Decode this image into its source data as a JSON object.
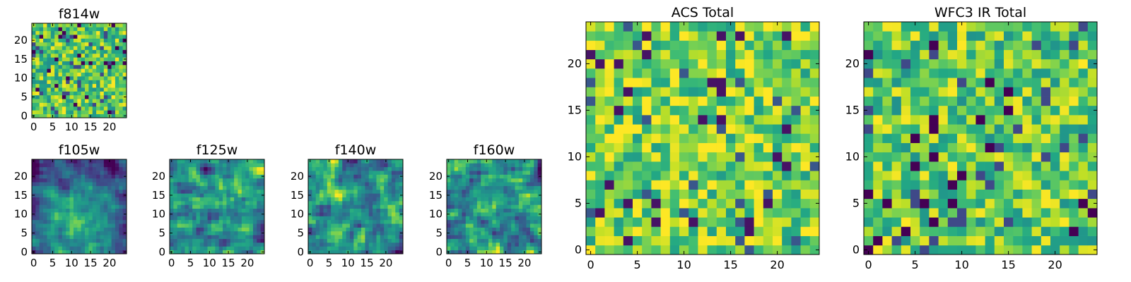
{
  "figure": {
    "colormap": "viridis",
    "colors": [
      "#440154",
      "#3b528b",
      "#21918c",
      "#5ec962",
      "#fde725"
    ],
    "seed_note": "pixel values are noise; the page renders a deterministic 25x25 field per panel"
  },
  "chart_data": [
    {
      "type": "heatmap",
      "title": "f814w",
      "grid_size": [
        25,
        25
      ],
      "xticks": [
        0,
        5,
        10,
        15,
        20
      ],
      "yticks": [
        0,
        5,
        10,
        15,
        20
      ],
      "xlim": [
        -0.5,
        24.5
      ],
      "ylim": [
        -0.5,
        24.5
      ],
      "seed": 11,
      "profile": "noisy"
    },
    {
      "type": "heatmap",
      "title": "f105w",
      "grid_size": [
        25,
        25
      ],
      "xticks": [
        0,
        5,
        10,
        15,
        20
      ],
      "yticks": [
        0,
        5,
        10,
        15,
        20
      ],
      "xlim": [
        -0.5,
        24.5
      ],
      "ylim": [
        -0.5,
        24.5
      ],
      "seed": 23,
      "profile": "smooth-bright-center"
    },
    {
      "type": "heatmap",
      "title": "f125w",
      "grid_size": [
        25,
        25
      ],
      "xticks": [
        0,
        5,
        10,
        15,
        20
      ],
      "yticks": [
        0,
        5,
        10,
        15,
        20
      ],
      "xlim": [
        -0.5,
        24.5
      ],
      "ylim": [
        -0.5,
        24.5
      ],
      "seed": 37,
      "profile": "smooth"
    },
    {
      "type": "heatmap",
      "title": "f140w",
      "grid_size": [
        25,
        25
      ],
      "xticks": [
        0,
        5,
        10,
        15,
        20
      ],
      "yticks": [
        0,
        5,
        10,
        15,
        20
      ],
      "xlim": [
        -0.5,
        24.5
      ],
      "ylim": [
        -0.5,
        24.5
      ],
      "seed": 41,
      "profile": "smooth"
    },
    {
      "type": "heatmap",
      "title": "f160w",
      "grid_size": [
        25,
        25
      ],
      "xticks": [
        0,
        5,
        10,
        15,
        20
      ],
      "yticks": [
        0,
        5,
        10,
        15,
        20
      ],
      "xlim": [
        -0.5,
        24.5
      ],
      "ylim": [
        -0.5,
        24.5
      ],
      "seed": 53,
      "profile": "smooth"
    },
    {
      "type": "heatmap",
      "title": "ACS Total",
      "grid_size": [
        25,
        25
      ],
      "xticks": [
        0,
        5,
        10,
        15,
        20
      ],
      "yticks": [
        0,
        5,
        10,
        15,
        20
      ],
      "xlim": [
        -0.5,
        24.5
      ],
      "ylim": [
        -0.5,
        24.5
      ],
      "seed": 67,
      "profile": "noisy-bright"
    },
    {
      "type": "heatmap",
      "title": "WFC3 IR Total",
      "grid_size": [
        25,
        25
      ],
      "xticks": [
        0,
        5,
        10,
        15,
        20
      ],
      "yticks": [
        0,
        5,
        10,
        15,
        20
      ],
      "xlim": [
        -0.5,
        24.5
      ],
      "ylim": [
        -0.5,
        24.5
      ],
      "seed": 79,
      "profile": "noisy"
    }
  ]
}
